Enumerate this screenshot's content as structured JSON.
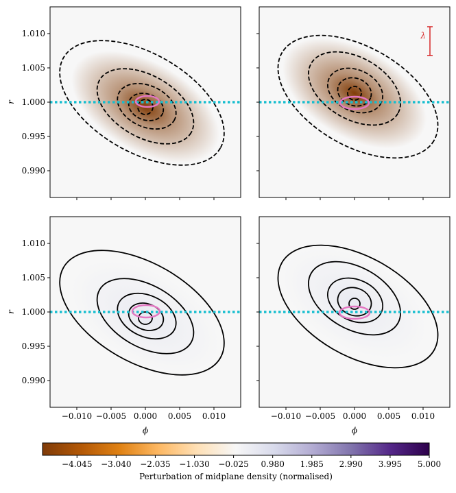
{
  "chart_data": [
    {
      "type": "contour",
      "xlim": [
        -0.0139,
        0.0139
      ],
      "ylim": [
        0.9861,
        1.0139
      ],
      "xticks": [
        -0.01,
        -0.005,
        0.0,
        0.005,
        0.01
      ],
      "yticks": [
        {
          "value": 0.99,
          "label": "0.990"
        },
        {
          "value": 0.995,
          "label": "0.995"
        },
        {
          "value": 1.0,
          "label": "1.000"
        },
        {
          "value": 1.005,
          "label": "1.005"
        },
        {
          "value": 1.01,
          "label": "1.010"
        }
      ],
      "y_label": "r",
      "line_style": "dashed",
      "contour_color": "#000000",
      "peak": {
        "x": 0.0,
        "y": 0.9993,
        "value": -4.9
      },
      "contours": [
        {
          "x": -0.0005,
          "y": 0.9999,
          "dx": 0.0132,
          "dy": 0.0072,
          "angle": 30
        },
        {
          "x": 0.0,
          "y": 0.9994,
          "dx": 0.0077,
          "dy": 0.0045,
          "angle": 30
        },
        {
          "x": 0.0002,
          "y": 0.9994,
          "dx": 0.0045,
          "dy": 0.003,
          "angle": 25
        },
        {
          "x": 0.0001,
          "y": 0.9993,
          "dx": 0.0026,
          "dy": 0.0019,
          "angle": 20
        },
        {
          "x": 0.0,
          "y": 0.9993,
          "dx": 0.0011,
          "dy": 0.0011,
          "angle": 0
        }
      ],
      "hline": 1.0,
      "hline_color": "#17becf",
      "marker": {
        "x": 0.0003,
        "y": 1.0001,
        "dx": 0.0017,
        "dy": 0.0008
      },
      "marker_color": "#e377c2"
    },
    {
      "type": "contour",
      "xlim": [
        -0.0139,
        0.0139
      ],
      "ylim": [
        0.9861,
        1.0139
      ],
      "xticks": [
        -0.01,
        -0.005,
        0.0,
        0.005,
        0.01
      ],
      "yticks": [
        0.99,
        0.995,
        1.0,
        1.005,
        1.01
      ],
      "line_style": "dashed",
      "contour_color": "#000000",
      "peak": {
        "x": 0.0,
        "y": 1.0013,
        "value": -4.9
      },
      "contours": [
        {
          "x": 0.0005,
          "y": 1.0008,
          "dx": 0.0128,
          "dy": 0.0072,
          "angle": 30
        },
        {
          "x": 0.0,
          "y": 1.002,
          "dx": 0.0073,
          "dy": 0.0045,
          "angle": 30
        },
        {
          "x": 0.0001,
          "y": 1.0017,
          "dx": 0.0042,
          "dy": 0.003,
          "angle": 25
        },
        {
          "x": 0.0,
          "y": 1.0015,
          "dx": 0.0025,
          "dy": 0.002,
          "angle": 20
        },
        {
          "x": 0.0,
          "y": 1.0013,
          "dx": 0.001,
          "dy": 0.001,
          "angle": 0
        }
      ],
      "hline": 1.0,
      "hline_color": "#17becf",
      "marker": {
        "x": 0.0,
        "y": 0.9999,
        "dx": 0.0021,
        "dy": 0.0009
      },
      "marker_color": "#e377c2",
      "scale_bar": {
        "x": 0.011,
        "y": [
          1.0068,
          1.011
        ],
        "label": "λ",
        "color": "#d62728"
      }
    },
    {
      "type": "contour",
      "xlim": [
        -0.0139,
        0.0139
      ],
      "ylim": [
        0.9861,
        1.0139
      ],
      "xticks": [
        {
          "value": -0.01,
          "label": "−0.010"
        },
        {
          "value": -0.005,
          "label": "−0.005"
        },
        {
          "value": 0.0,
          "label": "0.000"
        },
        {
          "value": 0.005,
          "label": "0.005"
        },
        {
          "value": 0.01,
          "label": "0.010"
        }
      ],
      "yticks": [
        {
          "value": 0.99,
          "label": "0.990"
        },
        {
          "value": 0.995,
          "label": "0.995"
        },
        {
          "value": 1.0,
          "label": "1.000"
        },
        {
          "value": 1.005,
          "label": "1.005"
        },
        {
          "value": 1.01,
          "label": "1.010"
        }
      ],
      "x_label": "ϕ",
      "y_label": "r",
      "line_style": "solid",
      "contour_color": "#000000",
      "peak": {
        "x": 0.0,
        "y": 0.9993,
        "value": 0.5
      },
      "contours": [
        {
          "x": -0.0005,
          "y": 0.9999,
          "dx": 0.0132,
          "dy": 0.0072,
          "angle": 30
        },
        {
          "x": 0.0,
          "y": 0.9994,
          "dx": 0.0077,
          "dy": 0.0045,
          "angle": 30
        },
        {
          "x": 0.0002,
          "y": 0.9994,
          "dx": 0.0045,
          "dy": 0.003,
          "angle": 25
        },
        {
          "x": 0.0001,
          "y": 0.9993,
          "dx": 0.0026,
          "dy": 0.0019,
          "angle": 20
        },
        {
          "x": 0.0,
          "y": 0.9991,
          "dx": 0.001,
          "dy": 0.0009,
          "angle": 0
        }
      ],
      "hline": 1.0,
      "hline_color": "#17becf",
      "marker": {
        "x": 0.0001,
        "y": 1.0001,
        "dx": 0.002,
        "dy": 0.0009
      },
      "marker_color": "#e377c2"
    },
    {
      "type": "contour",
      "xlim": [
        -0.0139,
        0.0139
      ],
      "ylim": [
        0.9861,
        1.0139
      ],
      "xticks": [
        {
          "value": -0.01,
          "label": "−0.010"
        },
        {
          "value": -0.005,
          "label": "−0.005"
        },
        {
          "value": 0.0,
          "label": "0.000"
        },
        {
          "value": 0.005,
          "label": "0.005"
        },
        {
          "value": 0.01,
          "label": "0.010"
        }
      ],
      "yticks": [
        0.99,
        0.995,
        1.0,
        1.005,
        1.01
      ],
      "x_label": "ϕ",
      "line_style": "solid",
      "contour_color": "#000000",
      "peak": {
        "x": 0.0,
        "y": 1.0013,
        "value": 0.5
      },
      "contours": [
        {
          "x": 0.0005,
          "y": 1.0008,
          "dx": 0.0128,
          "dy": 0.0072,
          "angle": 30
        },
        {
          "x": 0.0,
          "y": 1.002,
          "dx": 0.0073,
          "dy": 0.0045,
          "angle": 30
        },
        {
          "x": 0.0001,
          "y": 1.0017,
          "dx": 0.0042,
          "dy": 0.003,
          "angle": 25
        },
        {
          "x": 0.0,
          "y": 1.0015,
          "dx": 0.0025,
          "dy": 0.002,
          "angle": 20
        },
        {
          "x": 0.0,
          "y": 1.0012,
          "dx": 0.0008,
          "dy": 0.0008,
          "angle": 0
        }
      ],
      "hline": 1.0,
      "hline_color": "#17becf",
      "marker": {
        "x": 0.0,
        "y": 0.9999,
        "dx": 0.0022,
        "dy": 0.0009
      },
      "marker_color": "#e377c2"
    }
  ],
  "colorbar": {
    "label": "Perturbation of midplane density (normalised)",
    "lim": [
      -4.93,
      5.0
    ],
    "colors": [
      "#7f3b08",
      "#b35806",
      "#e08214",
      "#fdb863",
      "#fee0b6",
      "#f7f7f7",
      "#d8daeb",
      "#b2abd2",
      "#8073ac",
      "#542788",
      "#2d004b"
    ],
    "ticks": [
      {
        "value": -4.045,
        "label": "−4.045"
      },
      {
        "value": -3.04,
        "label": "−3.040"
      },
      {
        "value": -2.035,
        "label": "−2.035"
      },
      {
        "value": -1.03,
        "label": "−1.030"
      },
      {
        "value": -0.025,
        "label": "−0.025"
      },
      {
        "value": 0.98,
        "label": "0.980"
      },
      {
        "value": 1.985,
        "label": "1.985"
      },
      {
        "value": 2.99,
        "label": "2.990"
      },
      {
        "value": 3.995,
        "label": "3.995"
      },
      {
        "value": 5.0,
        "label": "5.000"
      }
    ]
  }
}
